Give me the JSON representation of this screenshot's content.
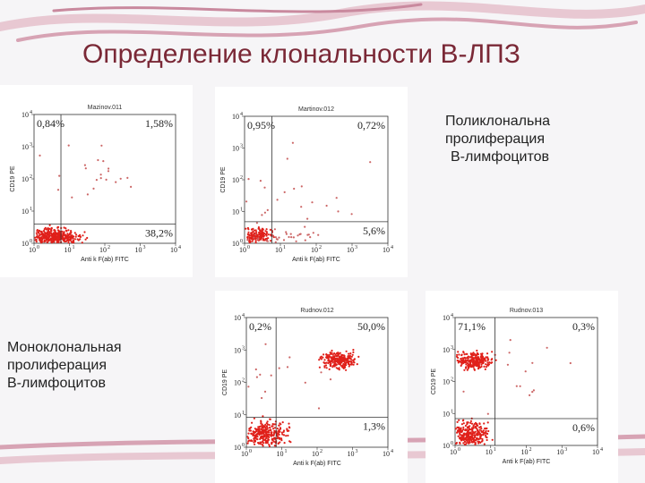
{
  "header": {
    "title": "Определение клональности В-ЛПЗ"
  },
  "notes": {
    "polyclonal": [
      "Поликлональна",
      "пролиферация",
      "В-лимфоцитов"
    ],
    "monoclonal": [
      "Моноклональная",
      "пролиферация",
      "В-лимфоцитов"
    ]
  },
  "axes": {
    "y_label": "CD19 PE",
    "x_label": "Anti k F(ab) FITC",
    "tick_base": "10",
    "tick_exponents": [
      "0",
      "1",
      "2",
      "3",
      "4"
    ]
  },
  "plots": [
    {
      "title": "Mazinov.011",
      "upper_left": "0,84%",
      "upper_right": "1,58%",
      "lower_right": "38,2%"
    },
    {
      "title": "Martinov.012",
      "upper_left": "0,95%",
      "upper_right": "0,72%",
      "lower_right": "5,6%"
    },
    {
      "title": "Rudnov.012",
      "upper_left": "0,2%",
      "upper_right": "50,0%",
      "lower_right": "1,3%"
    },
    {
      "title": "Rudnov.013",
      "upper_left": "71,1%",
      "upper_right": "0,3%",
      "lower_right": "0,6%"
    }
  ]
}
